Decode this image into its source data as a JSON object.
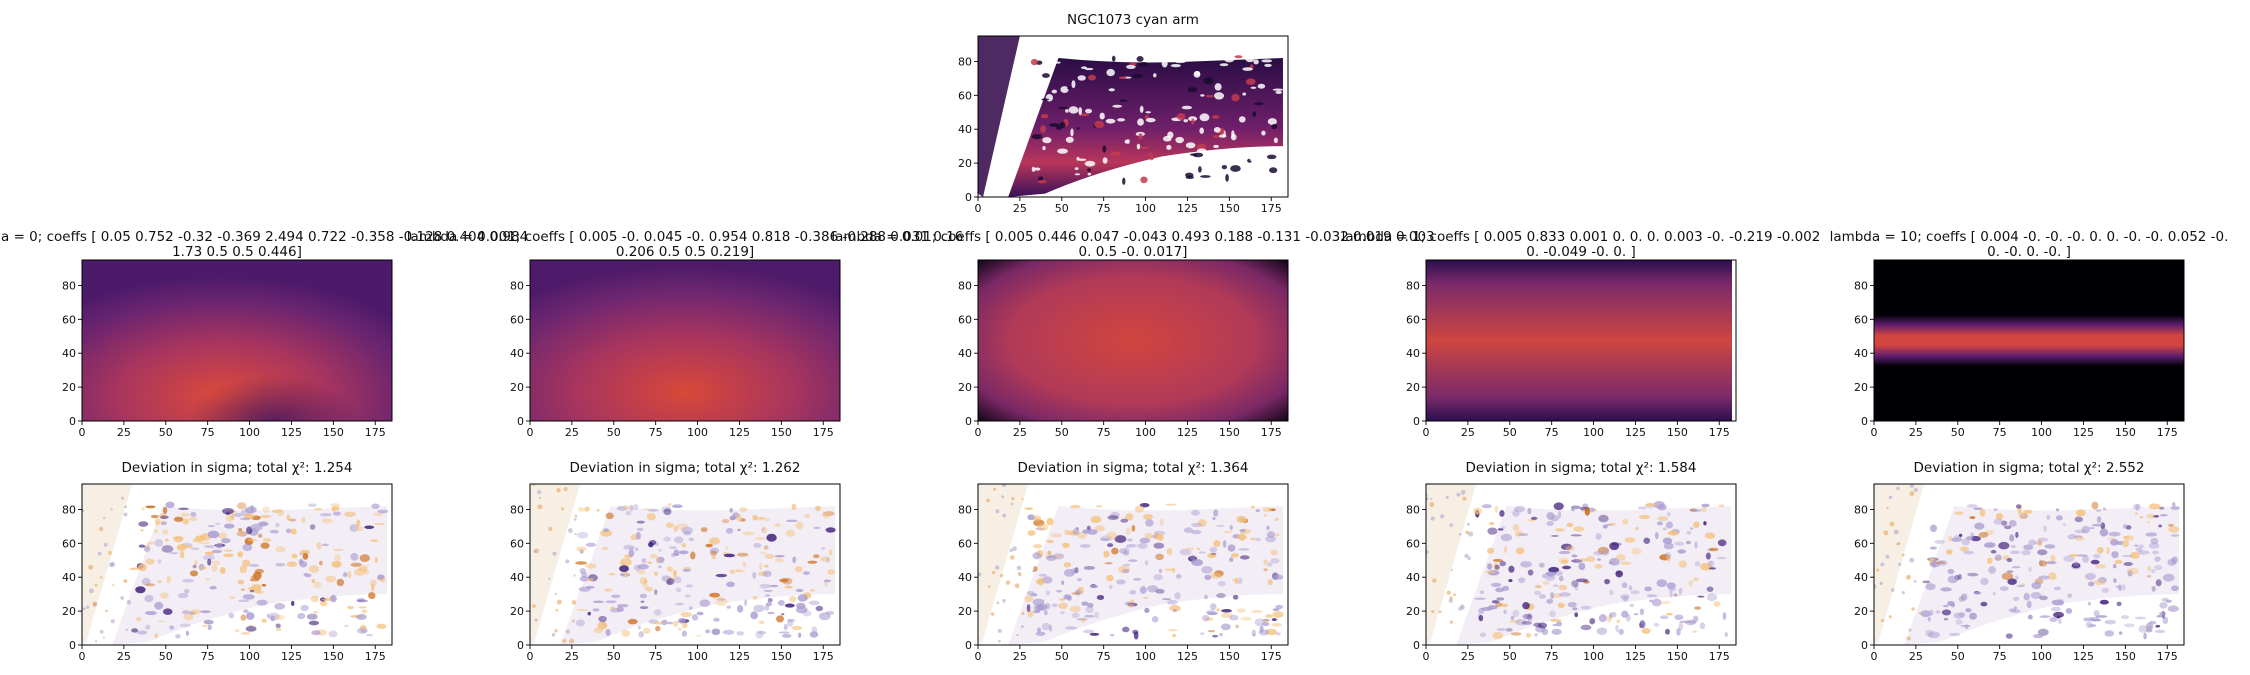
{
  "figure_title": "NGC1073 cyan arm",
  "chart_data": [
    {
      "type": "heatmap",
      "role": "observed",
      "title": "NGC1073 cyan arm",
      "xlim": [
        0,
        185
      ],
      "ylim": [
        0,
        95
      ],
      "xticks": [
        0,
        25,
        50,
        75,
        100,
        125,
        150,
        175
      ],
      "yticks": [
        0,
        20,
        40,
        60,
        80
      ],
      "colormap": "inferno"
    },
    {
      "type": "heatmap",
      "role": "model",
      "title_lines": [
        "a = 0; coeffs [ 0.05   0.752 -0.32  -0.369  2.494  0.722 -0.358 -0.128  0.404  0.984",
        "1.73   0.5    0.5    0.446]"
      ],
      "xlim": [
        0,
        185
      ],
      "ylim": [
        0,
        95
      ],
      "xticks": [
        0,
        25,
        50,
        75,
        100,
        125,
        150,
        175
      ],
      "yticks": [
        0,
        20,
        40,
        60,
        80
      ],
      "colormap": "inferno"
    },
    {
      "type": "heatmap",
      "role": "model",
      "title_lines": [
        "lambda = 0.001; coeffs [ 0.005 -0.     0.045 -0.     0.954  0.818 -0.386 -0.288  0.031  0.16",
        "0.206  0.5    0.5    0.219]"
      ],
      "xlim": [
        0,
        185
      ],
      "ylim": [
        0,
        95
      ],
      "xticks": [
        0,
        25,
        50,
        75,
        100,
        125,
        150,
        175
      ],
      "yticks": [
        0,
        20,
        40,
        60,
        80
      ],
      "colormap": "inferno"
    },
    {
      "type": "heatmap",
      "role": "model",
      "title_lines": [
        "lambda = 0.01; coeffs [ 0.005  0.446  0.047 -0.043  0.493  0.188 -0.131 -0.032  0.019  0.003",
        "0.     0.5   -0.     0.017]"
      ],
      "xlim": [
        0,
        185
      ],
      "ylim": [
        0,
        95
      ],
      "xticks": [
        0,
        25,
        50,
        75,
        100,
        125,
        150,
        175
      ],
      "yticks": [
        0,
        20,
        40,
        60,
        80
      ],
      "colormap": "inferno"
    },
    {
      "type": "heatmap",
      "role": "model",
      "title_lines": [
        "lambda = 1; coeffs [ 0.005  0.833  0.001  0.     0.     0.     0.003 -0.    -0.219 -0.002",
        "0.    -0.049 -0.     0.   ]"
      ],
      "xlim": [
        0,
        185
      ],
      "ylim": [
        0,
        95
      ],
      "xticks": [
        0,
        25,
        50,
        75,
        100,
        125,
        150,
        175
      ],
      "yticks": [
        0,
        20,
        40,
        60,
        80
      ],
      "colormap": "inferno"
    },
    {
      "type": "heatmap",
      "role": "model",
      "title_lines": [
        "lambda = 10; coeffs [ 0.004 -0.    -0.    -0.     0.     0.    -0.    -0.     0.052 -0.",
        "0.    -0.     0.    -0.   ]"
      ],
      "xlim": [
        0,
        185
      ],
      "ylim": [
        0,
        95
      ],
      "xticks": [
        0,
        25,
        50,
        75,
        100,
        125,
        150,
        175
      ],
      "yticks": [
        0,
        20,
        40,
        60,
        80
      ],
      "colormap": "inferno"
    },
    {
      "type": "heatmap",
      "role": "residual",
      "title": "Deviation in sigma; total χ²: 1.254",
      "total_chi2": 1.254,
      "xlim": [
        0,
        185
      ],
      "ylim": [
        0,
        95
      ],
      "xticks": [
        0,
        25,
        50,
        75,
        100,
        125,
        150,
        175
      ],
      "yticks": [
        0,
        20,
        40,
        60,
        80
      ],
      "colormap": "PuOr"
    },
    {
      "type": "heatmap",
      "role": "residual",
      "title": "Deviation in sigma; total χ²: 1.262",
      "total_chi2": 1.262,
      "xlim": [
        0,
        185
      ],
      "ylim": [
        0,
        95
      ],
      "xticks": [
        0,
        25,
        50,
        75,
        100,
        125,
        150,
        175
      ],
      "yticks": [
        0,
        20,
        40,
        60,
        80
      ],
      "colormap": "PuOr"
    },
    {
      "type": "heatmap",
      "role": "residual",
      "title": "Deviation in sigma; total χ²: 1.364",
      "total_chi2": 1.364,
      "xlim": [
        0,
        185
      ],
      "ylim": [
        0,
        95
      ],
      "xticks": [
        0,
        25,
        50,
        75,
        100,
        125,
        150,
        175
      ],
      "yticks": [
        0,
        20,
        40,
        60,
        80
      ],
      "colormap": "PuOr"
    },
    {
      "type": "heatmap",
      "role": "residual",
      "title": "Deviation in sigma; total χ²: 1.584",
      "total_chi2": 1.584,
      "xlim": [
        0,
        185
      ],
      "ylim": [
        0,
        95
      ],
      "xticks": [
        0,
        25,
        50,
        75,
        100,
        125,
        150,
        175
      ],
      "yticks": [
        0,
        20,
        40,
        60,
        80
      ],
      "colormap": "PuOr"
    },
    {
      "type": "heatmap",
      "role": "residual",
      "title": "Deviation in sigma; total χ²: 2.552",
      "total_chi2": 2.552,
      "xlim": [
        0,
        185
      ],
      "ylim": [
        0,
        95
      ],
      "xticks": [
        0,
        25,
        50,
        75,
        100,
        125,
        150,
        175
      ],
      "yticks": [
        0,
        20,
        40,
        60,
        80
      ],
      "colormap": "PuOr"
    }
  ]
}
